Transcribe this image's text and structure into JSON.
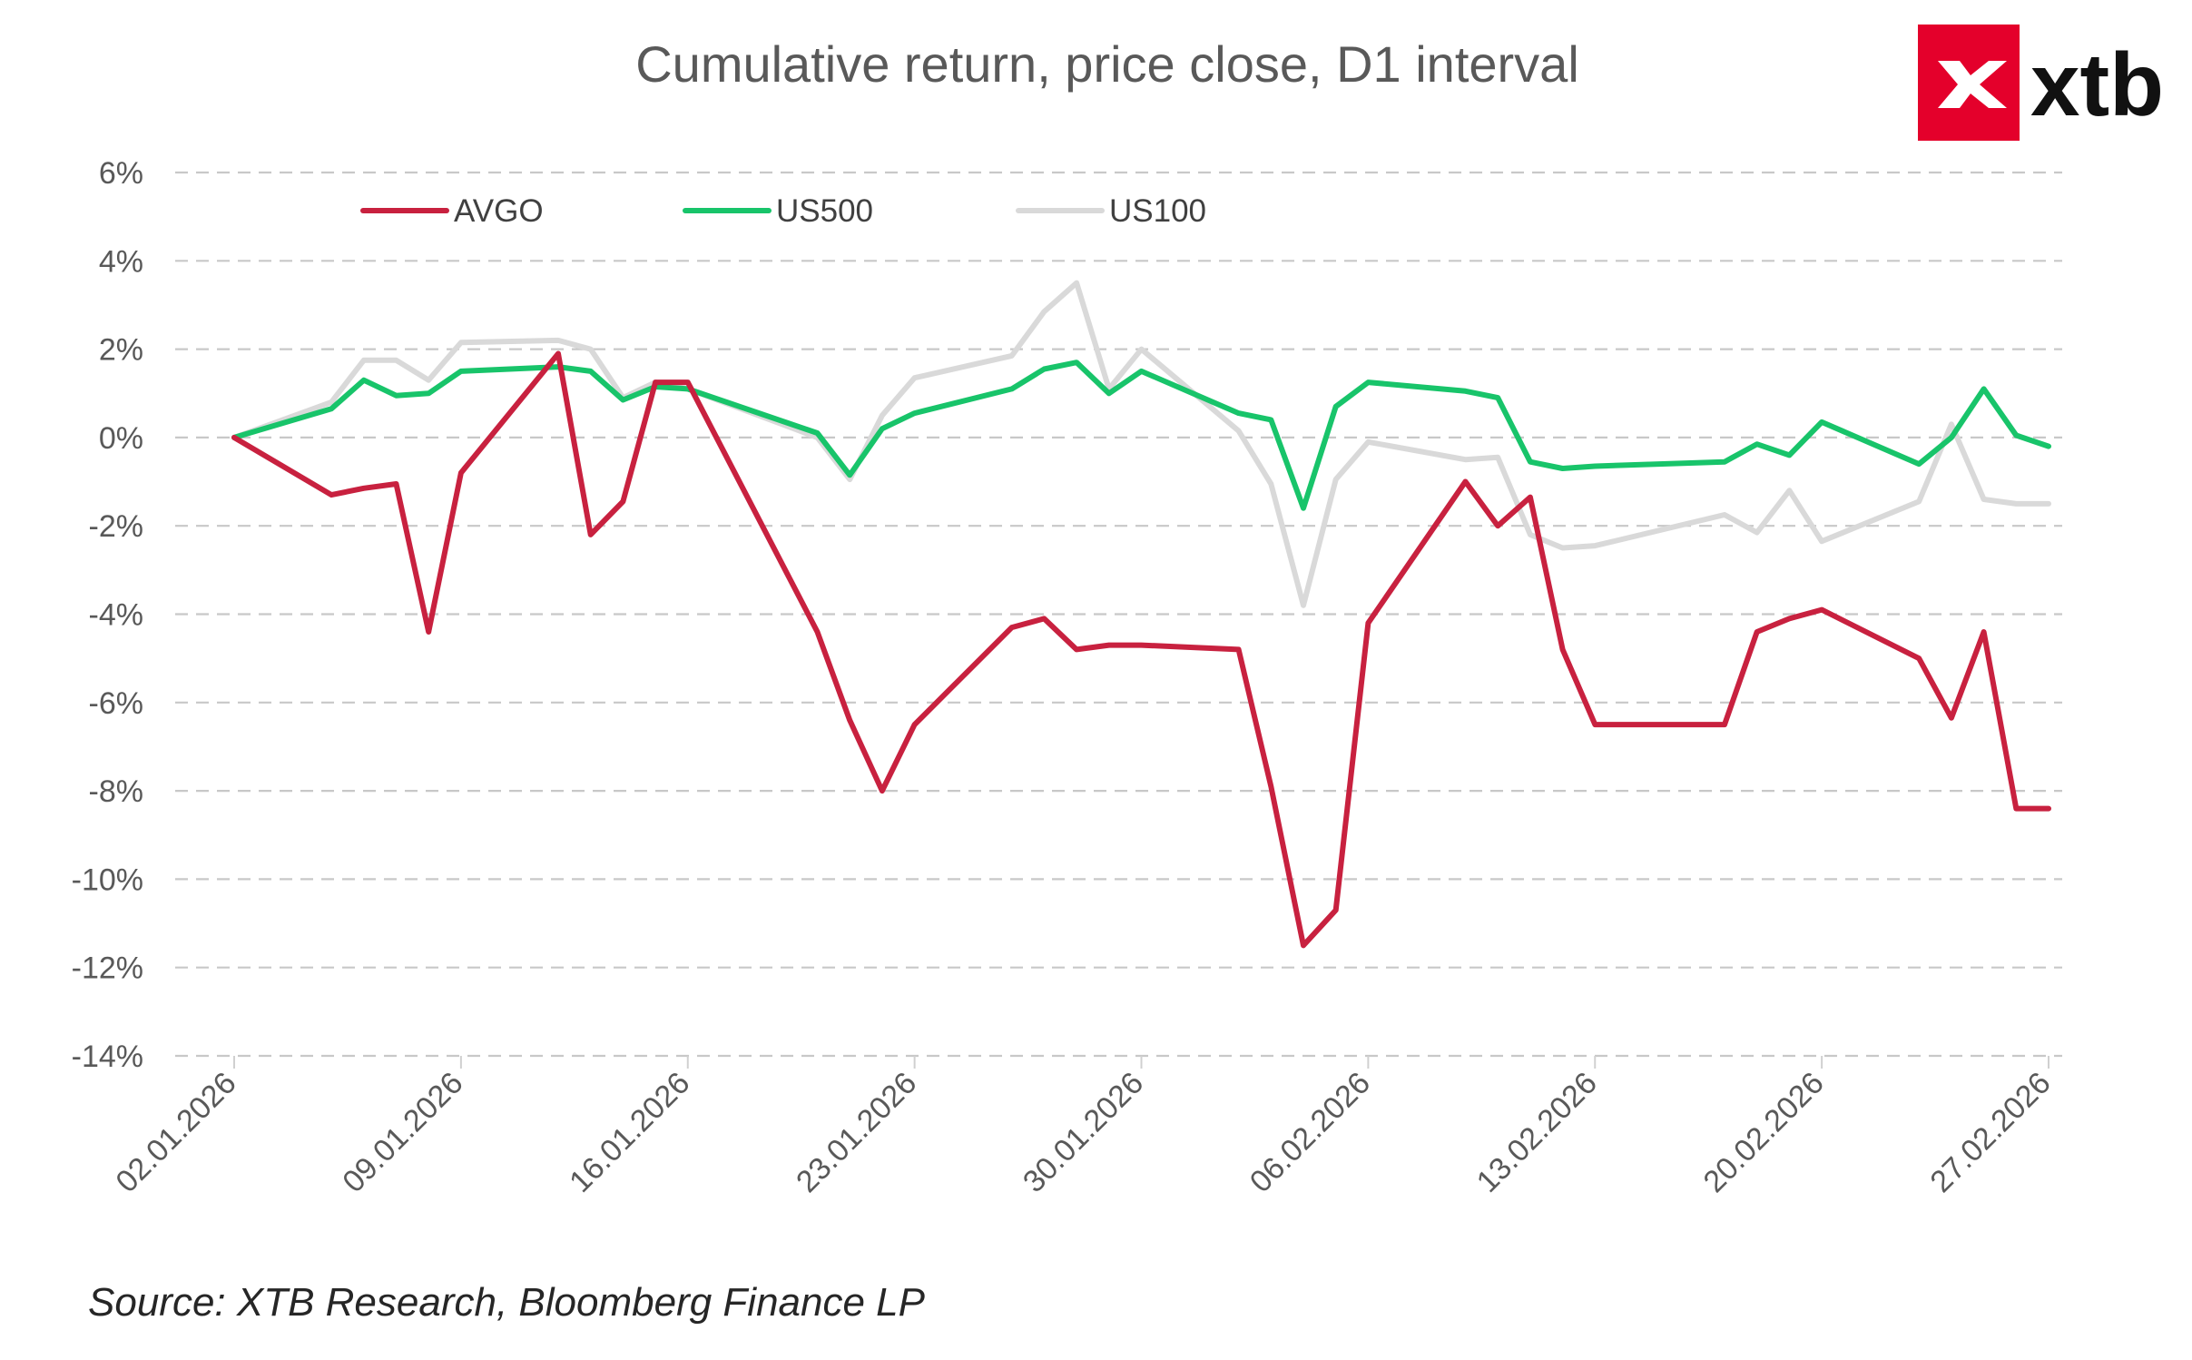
{
  "title": "Cumulative return, price close, D1 interval",
  "source": "Source: XTB Research, Bloomberg Finance LP",
  "brand": {
    "name": "xtb",
    "color": "#e4002b"
  },
  "chart_data": {
    "type": "line",
    "title": "Cumulative return, price close, D1 interval",
    "xlabel": "",
    "ylabel": "",
    "ylim": [
      -14,
      6
    ],
    "yticks": [
      "6%",
      "4%",
      "2%",
      "0%",
      "-2%",
      "-4%",
      "-6%",
      "-8%",
      "-10%",
      "-12%",
      "-14%"
    ],
    "xticks": [
      "02.01.2026",
      "09.01.2026",
      "16.01.2026",
      "23.01.2026",
      "30.01.2026",
      "06.02.2026",
      "13.02.2026",
      "20.02.2026",
      "27.02.2026"
    ],
    "x": [
      "02.01.2026",
      "05.01.2026",
      "06.01.2026",
      "07.01.2026",
      "08.01.2026",
      "09.01.2026",
      "12.01.2026",
      "13.01.2026",
      "14.01.2026",
      "15.01.2026",
      "16.01.2026",
      "20.01.2026",
      "21.01.2026",
      "22.01.2026",
      "23.01.2026",
      "26.01.2026",
      "27.01.2026",
      "28.01.2026",
      "29.01.2026",
      "30.01.2026",
      "02.02.2026",
      "03.02.2026",
      "04.02.2026",
      "05.02.2026",
      "06.02.2026",
      "09.02.2026",
      "10.02.2026",
      "11.02.2026",
      "12.02.2026",
      "13.02.2026",
      "17.02.2026",
      "18.02.2026",
      "19.02.2026",
      "20.02.2026",
      "23.02.2026",
      "24.02.2026",
      "25.02.2026",
      "26.02.2026",
      "27.02.2026"
    ],
    "grid": true,
    "legend": "top-left",
    "series": [
      {
        "name": "AVGO",
        "color": "#c8213f",
        "values": [
          0,
          -1.3,
          -1.15,
          -1.05,
          -4.4,
          -0.8,
          1.9,
          -2.2,
          -1.45,
          1.25,
          1.25,
          -4.4,
          -6.4,
          -8.0,
          -6.5,
          -4.3,
          -4.1,
          -4.8,
          -4.7,
          -4.7,
          -4.8,
          -7.9,
          -11.5,
          -10.7,
          -4.2,
          -1.0,
          -2.0,
          -1.35,
          -4.8,
          -6.5,
          -6.5,
          -4.4,
          -4.1,
          -3.9,
          -5.0,
          -6.35,
          -4.4,
          -8.4,
          -8.4
        ]
      },
      {
        "name": "US500",
        "color": "#18c46a",
        "values": [
          0,
          0.65,
          1.3,
          0.95,
          1.0,
          1.5,
          1.6,
          1.5,
          0.85,
          1.15,
          1.1,
          0.1,
          -0.85,
          0.2,
          0.55,
          1.1,
          1.55,
          1.7,
          1.0,
          1.5,
          0.55,
          0.4,
          -1.6,
          0.7,
          1.25,
          1.05,
          0.9,
          -0.55,
          -0.7,
          -0.65,
          -0.55,
          -0.15,
          -0.4,
          0.35,
          -0.6,
          0.0,
          1.1,
          0.05,
          -0.2
        ]
      },
      {
        "name": "US100",
        "color": "#d9d9d9",
        "values": [
          0,
          0.8,
          1.75,
          1.75,
          1.3,
          2.15,
          2.2,
          2.0,
          0.9,
          1.25,
          1.1,
          0.0,
          -0.95,
          0.5,
          1.35,
          1.85,
          2.85,
          3.5,
          1.1,
          2.0,
          0.15,
          -1.05,
          -3.8,
          -0.95,
          -0.1,
          -0.5,
          -0.45,
          -2.2,
          -2.5,
          -2.45,
          -1.75,
          -2.15,
          -1.2,
          -2.35,
          -1.45,
          0.3,
          -1.4,
          -1.5,
          -1.5
        ]
      }
    ]
  }
}
